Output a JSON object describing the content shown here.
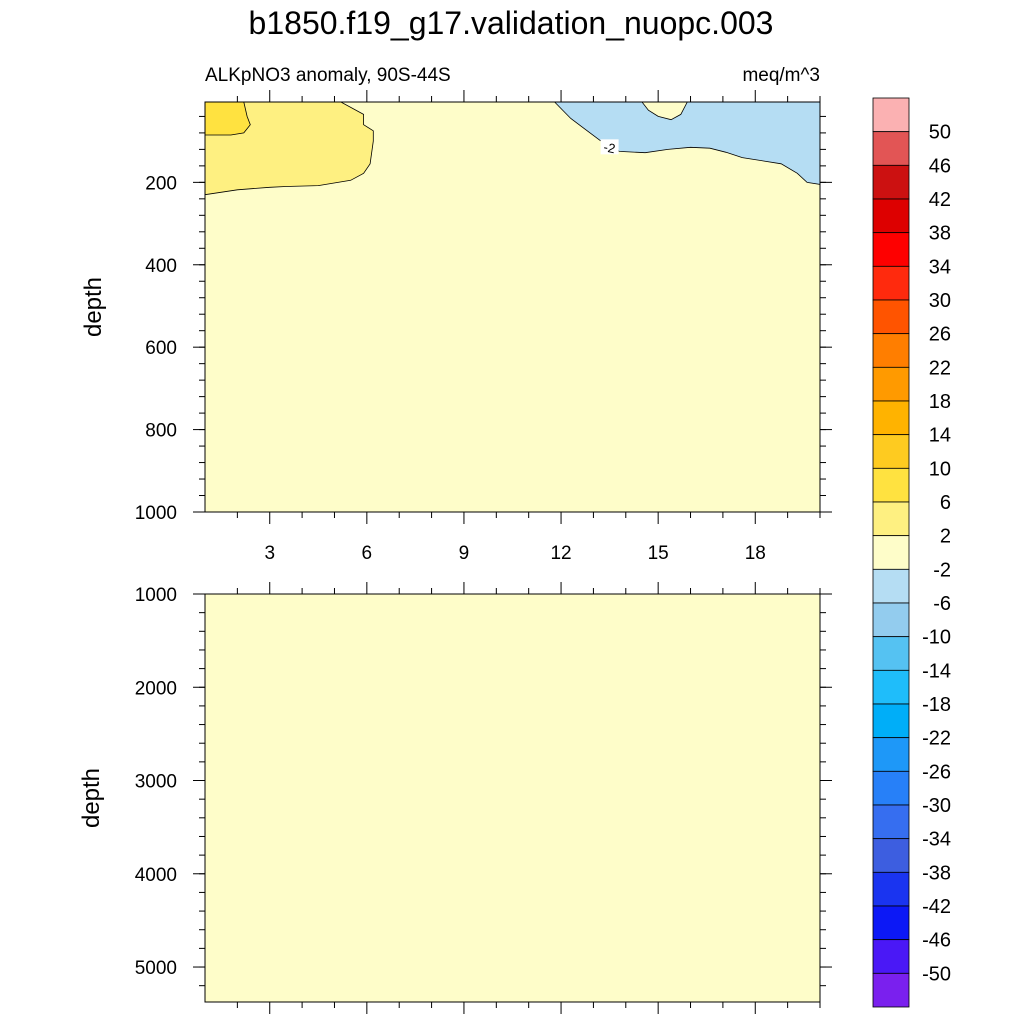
{
  "title": "b1850.f19_g17.validation_nuopc.003",
  "subtitle_left": "ALKpNO3 anomaly, 90S-44S",
  "subtitle_right": "meq/m^3",
  "chart_data": [
    {
      "type": "contour",
      "panel": "upper",
      "xlabel": "",
      "ylabel": "depth",
      "xlim": [
        1,
        20
      ],
      "ylim": [
        1000,
        5
      ],
      "x_ticks": [
        "3",
        "6",
        "9",
        "12",
        "15",
        "18"
      ],
      "x_tick_values": [
        3,
        6,
        9,
        12,
        15,
        18
      ],
      "y_ticks": [
        "200",
        "400",
        "600",
        "800",
        "1000"
      ],
      "y_tick_values": [
        200,
        400,
        600,
        800,
        1000
      ],
      "background_level": "-2 to 2",
      "regions": [
        {
          "range": "2 to 6",
          "points": [
            [
              1,
              230
            ],
            [
              2,
              218
            ],
            [
              3,
              212
            ],
            [
              3.5,
              210
            ],
            [
              4.5,
              208
            ],
            [
              5.5,
              195
            ],
            [
              5.9,
              178
            ],
            [
              6.1,
              155
            ],
            [
              6.2,
              100
            ],
            [
              6.2,
              75
            ],
            [
              5.9,
              60
            ],
            [
              5.9,
              35
            ],
            [
              5.2,
              5
            ],
            [
              1,
              5
            ]
          ]
        },
        {
          "range": "6 to 10",
          "points": [
            [
              1,
              85
            ],
            [
              1.8,
              85
            ],
            [
              2.2,
              80
            ],
            [
              2.4,
              60
            ],
            [
              2.3,
              40
            ],
            [
              2.2,
              5
            ],
            [
              1,
              5
            ]
          ]
        },
        {
          "range": "-6 to -2",
          "points": [
            [
              11.8,
              5
            ],
            [
              12.3,
              45
            ],
            [
              13.2,
              98
            ],
            [
              13.8,
              125
            ],
            [
              14.6,
              128
            ],
            [
              15.3,
              120
            ],
            [
              16,
              115
            ],
            [
              16.6,
              117
            ],
            [
              17.1,
              127
            ],
            [
              17.6,
              140
            ],
            [
              18.8,
              155
            ],
            [
              19.3,
              178
            ],
            [
              19.6,
              200
            ],
            [
              20,
              205
            ],
            [
              20,
              5
            ],
            [
              15.9,
              5
            ],
            [
              15.7,
              35
            ],
            [
              15.4,
              48
            ],
            [
              15,
              40
            ],
            [
              14.7,
              25
            ],
            [
              14.5,
              5
            ]
          ]
        }
      ],
      "contour_labels": [
        {
          "text": "-2",
          "x": 13.5,
          "y": 115
        }
      ]
    },
    {
      "type": "contour",
      "panel": "lower",
      "xlabel": "",
      "ylabel": "depth",
      "xlim": [
        1,
        20
      ],
      "ylim": [
        1000,
        5375
      ],
      "x_ticks": [],
      "y_ticks": [
        "1000",
        "2000",
        "3000",
        "4000",
        "5000"
      ],
      "y_tick_values": [
        1000,
        2000,
        3000,
        4000,
        5000
      ],
      "background_level": "-2 to 2",
      "regions": []
    },
    {
      "type": "colorbar",
      "labels": [
        "50",
        "46",
        "42",
        "38",
        "34",
        "30",
        "26",
        "22",
        "18",
        "14",
        "10",
        "6",
        "2",
        "-2",
        "-6",
        "-10",
        "-14",
        "-18",
        "-22",
        "-26",
        "-30",
        "-34",
        "-38",
        "-42",
        "-46",
        "-50"
      ],
      "colors": [
        "#fbb1b2",
        "#e25555",
        "#cc1111",
        "#dd0000",
        "#fe0000",
        "#ff2a0d",
        "#ff5400",
        "#ff7e00",
        "#ff9a00",
        "#ffb300",
        "#fecb20",
        "#ffe240",
        "#fef081",
        "#fefdc9",
        "#b5ddf3",
        "#93ccee",
        "#55c2f2",
        "#1fbdfa",
        "#00aef8",
        "#1e98f8",
        "#2780f8",
        "#366ef0",
        "#3d5ee0",
        "#1a34f0",
        "#0c18f6",
        "#4a18f6",
        "#7a20ee"
      ],
      "range_colors": {
        "-6 to -2": "#b5ddf3",
        "-2 to 2": "#fefdc9",
        "2 to 6": "#fef081",
        "6 to 10": "#ffe240"
      }
    }
  ]
}
